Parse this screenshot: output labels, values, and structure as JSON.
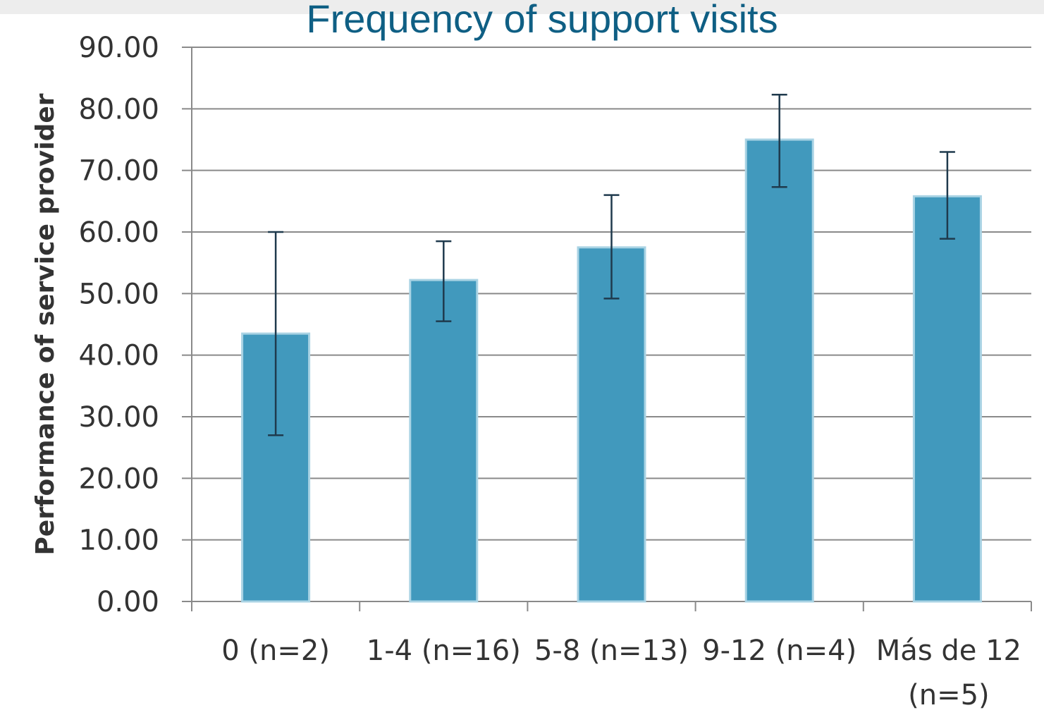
{
  "chart_data": {
    "type": "bar",
    "title": "Frequency of support visits",
    "ylabel": "Performance of service provider",
    "xlabel": "",
    "ylim": [
      0,
      90
    ],
    "yticks": [
      "0.00",
      "10.00",
      "20.00",
      "30.00",
      "40.00",
      "50.00",
      "60.00",
      "70.00",
      "80.00",
      "90.00"
    ],
    "categories": [
      [
        "0 (n=2)"
      ],
      [
        "1-4 (n=16)"
      ],
      [
        "5-8 (n=13)"
      ],
      [
        "9-12 (n=4)"
      ],
      [
        "Más de 12",
        "(n=5)"
      ]
    ],
    "values": [
      43.5,
      52.2,
      57.5,
      75.0,
      65.8
    ],
    "error_low": [
      27.0,
      45.5,
      49.2,
      67.3,
      58.9
    ],
    "error_high": [
      60.0,
      58.5,
      66.0,
      82.3,
      73.0
    ],
    "grid": true,
    "colors": {
      "bar": "#4199bd",
      "bar_edge": "#a9d3e4",
      "error": "#1f3a4d",
      "grid": "#8a8a8a",
      "title": "#0f5f84"
    }
  }
}
